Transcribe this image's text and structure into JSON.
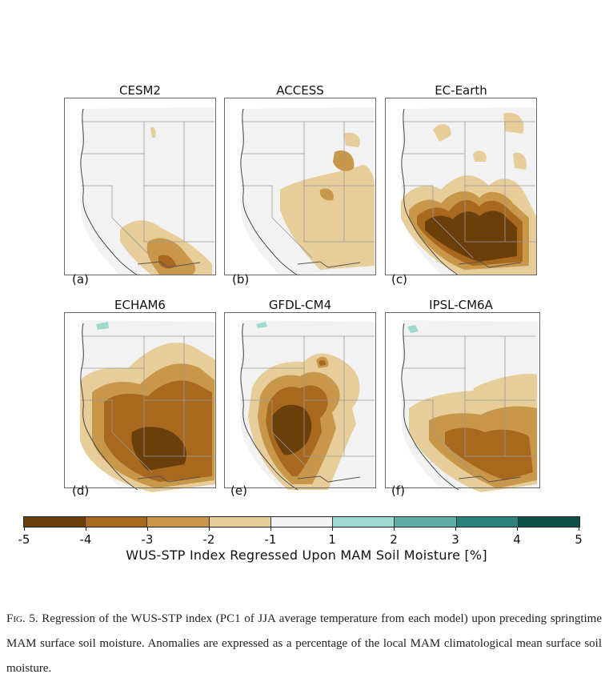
{
  "panels": [
    {
      "title": "CESM2",
      "label": "(a)",
      "profile": "a"
    },
    {
      "title": "ACCESS",
      "label": "(b)",
      "profile": "b"
    },
    {
      "title": "EC-Earth",
      "label": "(c)",
      "profile": "c"
    },
    {
      "title": "ECHAM6",
      "label": "(d)",
      "profile": "d"
    },
    {
      "title": "GFDL-CM4",
      "label": "(e)",
      "profile": "e"
    },
    {
      "title": "IPSL-CM6A",
      "label": "(f)",
      "profile": "f"
    }
  ],
  "colorbar": {
    "ticks": [
      "-5",
      "-4",
      "-3",
      "-2",
      "-1",
      "1",
      "2",
      "3",
      "4",
      "5"
    ],
    "colors": [
      "#6b3f0c",
      "#a8691f",
      "#c9974a",
      "#e6cd99",
      "#f1f2f1",
      "#9fdad0",
      "#5dafa6",
      "#2b827c",
      "#0b4f48"
    ],
    "label": "WUS-STP Index Regressed Upon MAM Soil Moisture [%]"
  },
  "caption": {
    "fig_label": "Fig. 5.",
    "text": "Regression of the WUS-STP index (PC1 of JJA average temperature from each model) upon preceding springtime MAM surface soil moisture.  Anomalies are expressed as a percentage of the local MAM climatological mean surface soil moisture."
  }
}
